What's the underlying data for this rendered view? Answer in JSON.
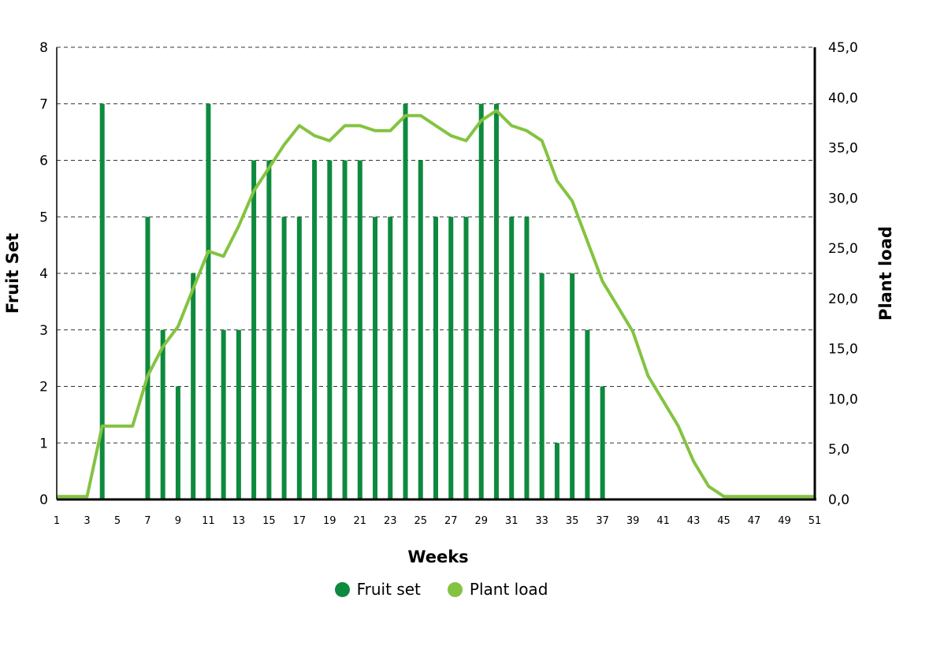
{
  "chart_data": {
    "type": "bar",
    "ylabel": "Fruit Set",
    "y2label": "Plant load",
    "xlabel": "Weeks",
    "x": [
      1,
      2,
      3,
      4,
      5,
      6,
      7,
      8,
      9,
      10,
      11,
      12,
      13,
      14,
      15,
      16,
      17,
      18,
      19,
      20,
      21,
      22,
      23,
      24,
      25,
      26,
      27,
      28,
      29,
      30,
      31,
      32,
      33,
      34,
      35,
      36,
      37,
      38,
      39,
      40,
      41,
      42,
      43,
      44,
      45,
      46,
      47,
      48,
      49,
      50,
      51
    ],
    "x_tick_labels": [
      "1",
      "3",
      "5",
      "7",
      "9",
      "11",
      "13",
      "15",
      "17",
      "19",
      "21",
      "23",
      "25",
      "27",
      "29",
      "31",
      "33",
      "35",
      "37",
      "39",
      "41",
      "43",
      "45",
      "47",
      "49",
      "51"
    ],
    "ylim": [
      0,
      8
    ],
    "y_ticks": [
      "0",
      "1",
      "2",
      "3",
      "4",
      "5",
      "6",
      "7",
      "8"
    ],
    "y2lim": [
      0,
      45
    ],
    "y2_ticks": [
      "0,0",
      "5,0",
      "10,0",
      "15,0",
      "20,0",
      "25,0",
      "30,0",
      "35,0",
      "40,0",
      "45,0"
    ],
    "grid": "horizontal dashed",
    "legend_position": "bottom",
    "series": [
      {
        "name": "Fruit set",
        "type": "bar",
        "axis": "left",
        "color": "#0e8a3e",
        "values": [
          0,
          0,
          0,
          7,
          0,
          0,
          5,
          3,
          2,
          4,
          7,
          3,
          3,
          6,
          6,
          5,
          5,
          6,
          6,
          6,
          6,
          5,
          5,
          7,
          6,
          5,
          5,
          5,
          7,
          7,
          5,
          5,
          4,
          1,
          4,
          3,
          2,
          0,
          0,
          0,
          0,
          0,
          0,
          0,
          0,
          0,
          0,
          0,
          0,
          0,
          0
        ]
      },
      {
        "name": "Plant load",
        "type": "line",
        "axis": "right",
        "color": "#84c341",
        "values": [
          0.3,
          0.3,
          0.3,
          7.3,
          7.3,
          7.3,
          12.3,
          15.2,
          17.2,
          21.0,
          24.7,
          24.2,
          27.2,
          30.7,
          33.0,
          35.3,
          37.2,
          36.2,
          35.7,
          37.2,
          37.2,
          36.7,
          36.7,
          38.2,
          38.2,
          37.2,
          36.2,
          35.7,
          37.7,
          38.7,
          37.2,
          36.7,
          35.7,
          31.7,
          29.7,
          25.7,
          21.7,
          19.2,
          16.7,
          12.3,
          9.8,
          7.3,
          3.8,
          1.3,
          0.3,
          0.3,
          0.3,
          0.3,
          0.3,
          0.3,
          0.3
        ]
      }
    ]
  }
}
